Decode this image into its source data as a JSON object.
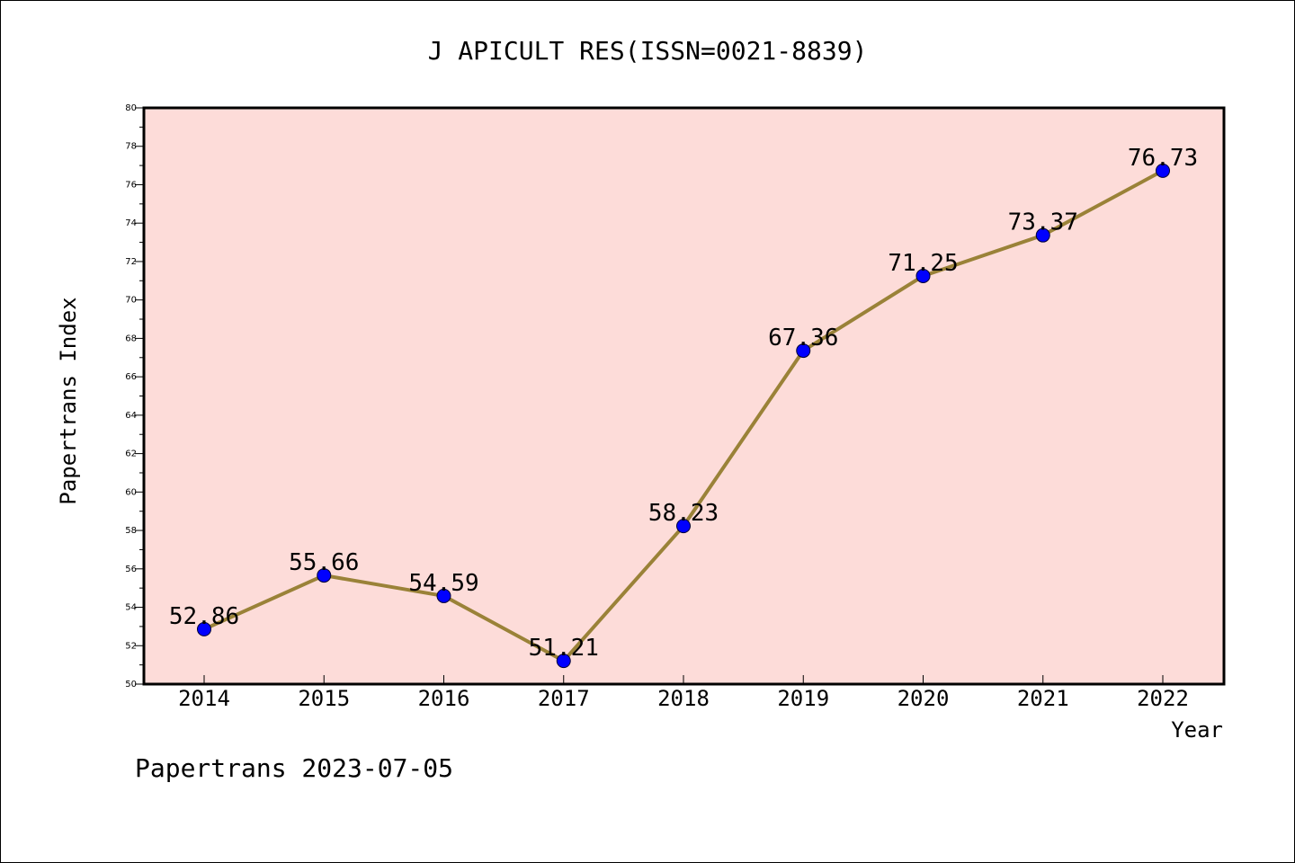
{
  "chart_data": {
    "type": "line",
    "title": "J APICULT RES(ISSN=0021-8839)",
    "xlabel": "Year",
    "ylabel": "Papertrans Index",
    "footer": "Papertrans 2023-07-05",
    "categories": [
      "2014",
      "2015",
      "2016",
      "2017",
      "2018",
      "2019",
      "2020",
      "2021",
      "2022"
    ],
    "series": [
      {
        "values": [
          52.86,
          55.66,
          54.59,
          51.21,
          58.23,
          67.36,
          71.25,
          73.37,
          76.73
        ],
        "labels": [
          "52.86",
          "55.66",
          "54.59",
          "51.21",
          "58.23",
          "67.36",
          "71.25",
          "73.37",
          "76.73"
        ]
      }
    ],
    "ylim": [
      50,
      80
    ],
    "yticks": [
      "50",
      "52",
      "54",
      "56",
      "58",
      "60",
      "62",
      "64",
      "66",
      "68",
      "70",
      "72",
      "74",
      "76",
      "78",
      "80"
    ],
    "grid": false,
    "colors": {
      "plot_background": "#fddcd9",
      "line": "#9a8238",
      "marker": "#0000ff"
    }
  }
}
